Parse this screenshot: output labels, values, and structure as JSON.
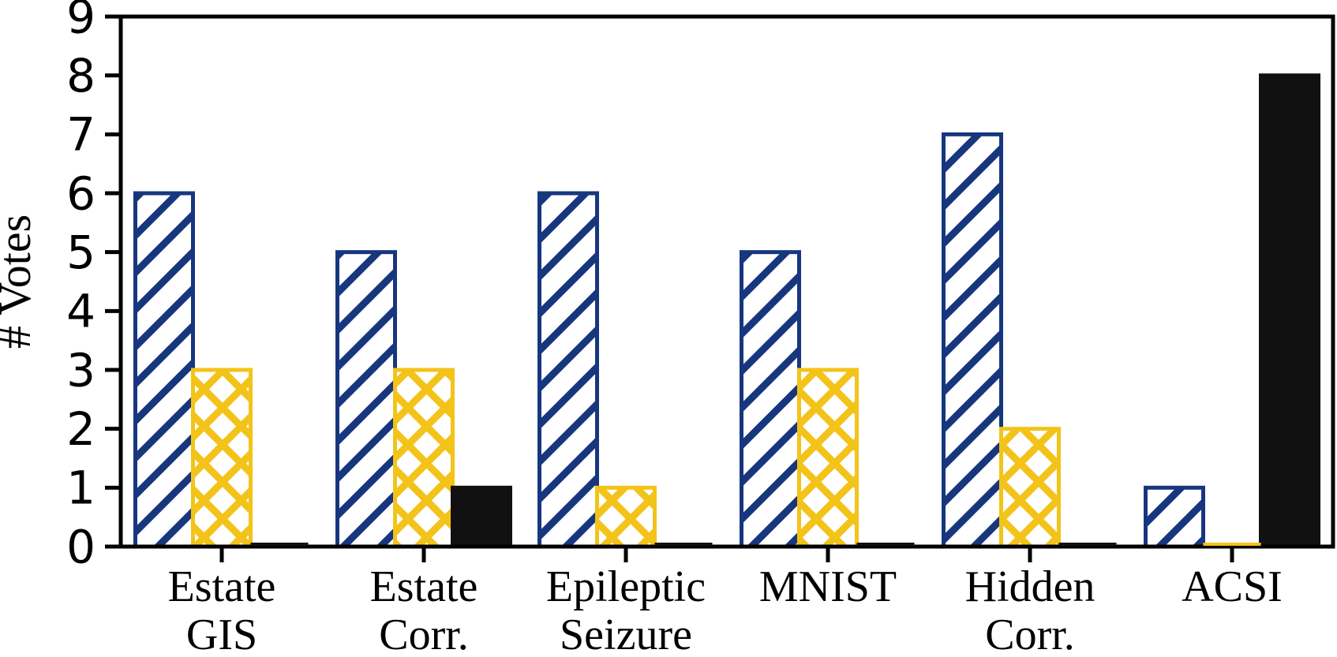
{
  "figure": {
    "background": "#ffffff",
    "axis_color": "#000000"
  },
  "chart_data": {
    "type": "bar",
    "title": "",
    "xlabel": "",
    "ylabel": "# Votes",
    "ylim": [
      0,
      9
    ],
    "yticks": [
      "0",
      "1",
      "2",
      "3",
      "4",
      "5",
      "6",
      "7",
      "8",
      "9"
    ],
    "grid": false,
    "legend": "none",
    "categories": [
      "Estate\nGIS",
      "Estate\nCorr.",
      "Epileptic\nSeizure",
      "MNIST",
      "Hidden\nCorr.",
      "ACSI"
    ],
    "series": [
      {
        "id": "navy-diagonal-hatched",
        "hatch": "/",
        "edge_color": "#17367E",
        "fill": "#ffffff",
        "values": [
          6,
          5,
          6,
          5,
          7,
          1
        ]
      },
      {
        "id": "gold-cross-hatched",
        "hatch": "xx",
        "edge_color": "#F3C31A",
        "fill": "#ffffff",
        "values": [
          3,
          3,
          1,
          3,
          2,
          0
        ]
      },
      {
        "id": "black-solid",
        "hatch": "solid",
        "edge_color": "#111111",
        "fill": "#111111",
        "values": [
          0,
          1,
          0,
          0,
          0,
          8
        ]
      }
    ]
  }
}
